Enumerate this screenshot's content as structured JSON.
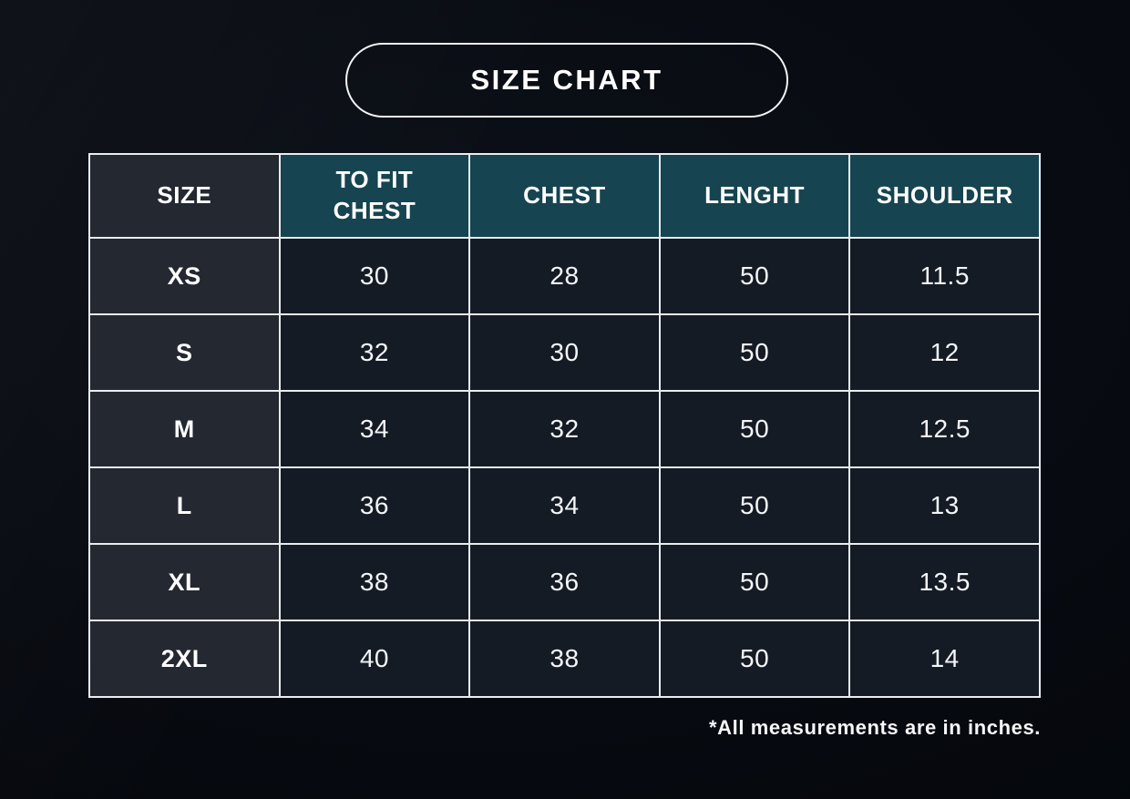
{
  "title": "SIZE CHART",
  "footnote": "*All measurements are in inches.",
  "colors": {
    "background": "#04060b",
    "header_teal": "#164450",
    "size_cell_dark_slate": "#232831",
    "data_cell_dark_navy": "#151b25",
    "grid_border": "#e9edf0",
    "text": "#ffffff"
  },
  "chart_data": {
    "type": "table",
    "title": "SIZE CHART",
    "columns": [
      "SIZE",
      "TO FIT CHEST",
      "CHEST",
      "LENGHT",
      "SHOULDER"
    ],
    "rows": [
      [
        "XS",
        "30",
        "28",
        "50",
        "11.5"
      ],
      [
        "S",
        "32",
        "30",
        "50",
        "12"
      ],
      [
        "M",
        "34",
        "32",
        "50",
        "12.5"
      ],
      [
        "L",
        "36",
        "34",
        "50",
        "13"
      ],
      [
        "XL",
        "38",
        "36",
        "50",
        "13.5"
      ],
      [
        "2XL",
        "40",
        "38",
        "50",
        "14"
      ]
    ],
    "note": "*All measurements are in inches.",
    "units": "inches",
    "layout_hints": {
      "header_background": "teal",
      "first_column_background": "dark-slate",
      "grid": "white 2px lines",
      "note_alignment": "right"
    }
  }
}
